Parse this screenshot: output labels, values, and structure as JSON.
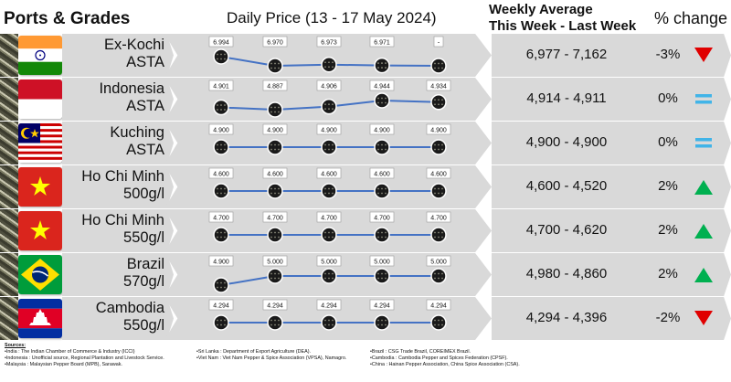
{
  "headers": {
    "ports": "Ports & Grades",
    "daily": "Daily Price (13 - 17 May 2024)",
    "weekly_line1": "Weekly Average",
    "weekly_line2": "This Week - Last Week",
    "change": "% change"
  },
  "colors": {
    "line": "#4472c4",
    "up": "#00b050",
    "down": "#e00000",
    "equal": "#41b4e8",
    "panel": "#d9d9d9"
  },
  "chart_data": {
    "type": "line",
    "title": "Daily Price (13 - 17 May 2024)",
    "days": 5,
    "rows": [
      {
        "port": "Ex-Kochi",
        "grade": "ASTA",
        "flag": "india",
        "labels": [
          "6.994",
          "6.970",
          "6.973",
          "6.971",
          "-"
        ],
        "values": [
          6994,
          6970,
          6973,
          6971,
          null
        ],
        "average": "6,977 - 7,162",
        "change": "-3%",
        "trend": "down"
      },
      {
        "port": "Indonesia",
        "grade": "ASTA",
        "flag": "indonesia",
        "labels": [
          "4.901",
          "4.887",
          "4.906",
          "4.944",
          "4.934"
        ],
        "values": [
          4901,
          4887,
          4906,
          4944,
          4934
        ],
        "average": "4,914 - 4,911",
        "change": "0%",
        "trend": "equal"
      },
      {
        "port": "Kuching",
        "grade": "ASTA",
        "flag": "malaysia",
        "labels": [
          "4.900",
          "4.900",
          "4.900",
          "4.900",
          "4.900"
        ],
        "values": [
          4900,
          4900,
          4900,
          4900,
          4900
        ],
        "average": "4,900 - 4,900",
        "change": "0%",
        "trend": "equal"
      },
      {
        "port": "Ho Chi Minh",
        "grade": "500g/l",
        "flag": "vietnam",
        "labels": [
          "4.600",
          "4.600",
          "4.600",
          "4.600",
          "4.600"
        ],
        "values": [
          4600,
          4600,
          4600,
          4600,
          4600
        ],
        "average": "4,600 - 4,520",
        "change": "2%",
        "trend": "up"
      },
      {
        "port": "Ho Chi Minh",
        "grade": "550g/l",
        "flag": "vietnam",
        "labels": [
          "4.700",
          "4.700",
          "4.700",
          "4.700",
          "4.700"
        ],
        "values": [
          4700,
          4700,
          4700,
          4700,
          4700
        ],
        "average": "4,700 - 4,620",
        "change": "2%",
        "trend": "up"
      },
      {
        "port": "Brazil",
        "grade": "570g/l",
        "flag": "brazil",
        "labels": [
          "4.900",
          "5.000",
          "5.000",
          "5.000",
          "5.000"
        ],
        "values": [
          4900,
          5000,
          5000,
          5000,
          5000
        ],
        "average": "4,980 - 4,860",
        "change": "2%",
        "trend": "up"
      },
      {
        "port": "Cambodia",
        "grade": "550g/l",
        "flag": "cambodia",
        "labels": [
          "4.294",
          "4.294",
          "4.294",
          "4.294",
          "4.294"
        ],
        "values": [
          4294,
          4294,
          4294,
          4294,
          4294
        ],
        "average": "4,294 - 4,396",
        "change": "-2%",
        "trend": "down"
      }
    ]
  },
  "sources": {
    "title": "Sources:",
    "col1": [
      "India : The Indian Chamber of Commerce & Industry (ICCI)",
      "Indonesia : Unofficial source, Regional Plantation and Livestock Service.",
      "Malaysia : Malaysian Pepper Board (MPB), Sarawak."
    ],
    "col2": [
      "Sri Lanka : Department of Export Agriculture (DEA).",
      "Viet Nam : Viet Nam Pepper & Spice Association (VPSA), Namagro."
    ],
    "col3": [
      "Brazil : CSG Trade Brazil, COREIMEX Brazil.",
      "Cambodia : Cambodia Pepper and Spices Federation (CPSF).",
      "China : Hainan Pepper Association, China Spice Association (CSA)."
    ]
  }
}
